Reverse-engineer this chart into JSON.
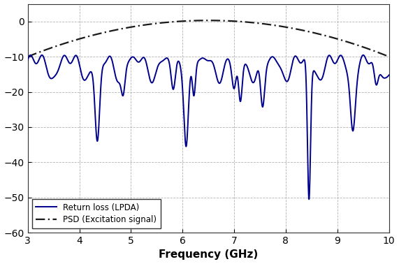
{
  "title": "",
  "xlabel": "Frequency (GHz)",
  "ylabel": "",
  "xlim": [
    3,
    10
  ],
  "ylim": [
    -60,
    5
  ],
  "yticks": [
    0,
    -10,
    -20,
    -30,
    -40,
    -50,
    -60
  ],
  "xticks": [
    3,
    4,
    5,
    6,
    7,
    8,
    9,
    10
  ],
  "return_loss_color": "#00008B",
  "psd_color": "#1a1a1a",
  "grid_color": "#aaaaaa",
  "background_color": "#ffffff",
  "legend_labels": [
    "Return loss (LPDA)",
    "PSD (Excitation signal)"
  ],
  "psd_peak_freq": 6.5,
  "psd_at_3ghz": -10.0,
  "psd_peak_val": 0.3
}
